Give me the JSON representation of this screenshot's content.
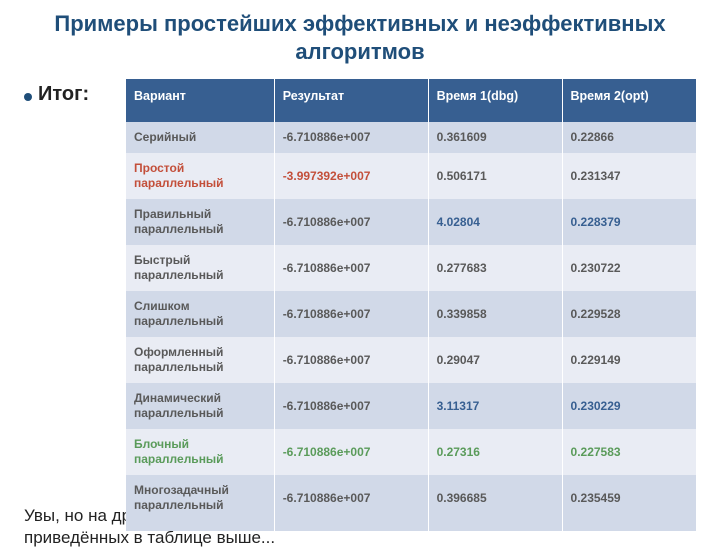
{
  "title": "Примеры простейших эффективных и неэффективных алгоритмов",
  "bullet": "Итог:",
  "colors": {
    "title": "#1f4e79",
    "header_bg": "#375f91",
    "row_odd": "#d1d9e8",
    "row_even": "#e9ecf4",
    "text_default": "#595959",
    "text_alert": "#c34f3a",
    "text_highlight": "#375f91",
    "text_good": "#5a9b5a"
  },
  "table": {
    "columns": [
      "Вариант",
      "Результат",
      "Время 1(dbg)",
      "Время 2(opt)"
    ],
    "rows": [
      {
        "variant": "Серийный",
        "variant_color": "text_default",
        "result": "-6.710886e+007",
        "result_color": "text_default",
        "t1": "0.361609",
        "t1_color": "text_default",
        "t2": "0.22866",
        "t2_color": "text_default"
      },
      {
        "variant": "Простой параллельный",
        "variant_color": "text_alert",
        "result": "-3.997392e+007",
        "result_color": "text_alert",
        "t1": "0.506171",
        "t1_color": "text_default",
        "t2": "0.231347",
        "t2_color": "text_default"
      },
      {
        "variant": "Правильный параллельный",
        "variant_color": "text_default",
        "result": "-6.710886e+007",
        "result_color": "text_default",
        "t1": "4.02804",
        "t1_color": "text_highlight",
        "t2": "0.228379",
        "t2_color": "text_highlight"
      },
      {
        "variant": "Быстрый параллельный",
        "variant_color": "text_default",
        "result": "-6.710886e+007",
        "result_color": "text_default",
        "t1": "0.277683",
        "t1_color": "text_default",
        "t2": "0.230722",
        "t2_color": "text_default"
      },
      {
        "variant": "Слишком параллельный",
        "variant_color": "text_default",
        "result": "-6.710886e+007",
        "result_color": "text_default",
        "t1": "0.339858",
        "t1_color": "text_default",
        "t2": " 0.229528",
        "t2_color": "text_default"
      },
      {
        "variant": "Оформленный параллельный",
        "variant_color": "text_default",
        "result": "-6.710886e+007",
        "result_color": "text_default",
        "t1": "0.29047",
        "t1_color": "text_default",
        "t2": "0.229149",
        "t2_color": "text_default"
      },
      {
        "variant": "Динамический параллельный",
        "variant_color": "text_default",
        "result": "-6.710886e+007",
        "result_color": "text_default",
        "t1": "3.11317",
        "t1_color": "text_highlight",
        "t2": "0.230229",
        "t2_color": "text_highlight"
      },
      {
        "variant": "Блочный параллельный",
        "variant_color": "text_good",
        "result": "-6.710886e+007",
        "result_color": "text_good",
        "t1": "0.27316",
        "t1_color": "text_good",
        "t2": "0.227583",
        "t2_color": "text_good"
      },
      {
        "variant": "Многозадачный параллельный",
        "variant_color": "text_default",
        "result": "-6.710886e+007",
        "result_color": "text_default",
        "t1": "0.396685",
        "t1_color": "text_default",
        "t2": "0.235459",
        "t2_color": "text_default"
      }
    ]
  },
  "footer": "Увы, но на другом компьютере результаты могут существенно отличаться от приведённых в таблице выше..."
}
